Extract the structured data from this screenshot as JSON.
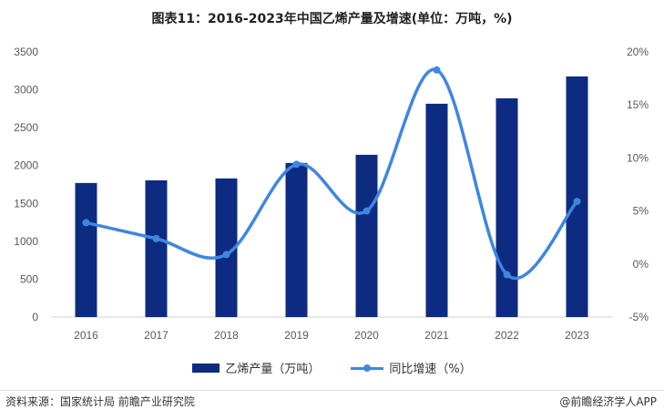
{
  "chart_data": {
    "type": "bar",
    "title": "图表11：2016-2023年中国乙烯产量及增速(单位：万吨，%)",
    "categories": [
      "2016",
      "2017",
      "2018",
      "2019",
      "2020",
      "2021",
      "2022",
      "2023"
    ],
    "series": [
      {
        "name": "乙烯产量（万吨）",
        "type": "bar",
        "axis": "left",
        "values": [
          1770,
          1805,
          1830,
          2034,
          2142,
          2816,
          2888,
          3177
        ],
        "color": "#0d2b80"
      },
      {
        "name": "同比增速（%）",
        "type": "line",
        "axis": "right",
        "smooth": true,
        "values": [
          3.9,
          2.4,
          0.9,
          9.4,
          5.0,
          18.3,
          -1.0,
          5.9
        ],
        "color": "#3f86e0"
      }
    ],
    "left_axis": {
      "ylim": [
        0,
        3500
      ],
      "ticks": [
        "0",
        "500",
        "1000",
        "1500",
        "2000",
        "2500",
        "3000",
        "3500"
      ]
    },
    "right_axis": {
      "ylim": [
        -5,
        20
      ],
      "ticks": [
        "-5%",
        "0%",
        "5%",
        "10%",
        "15%",
        "20%"
      ]
    },
    "grid": false,
    "legend": "bottom"
  },
  "footer": {
    "source": "资料来源：国家统计局 前瞻产业研究院",
    "brand": "@前瞻经济学人APP"
  }
}
